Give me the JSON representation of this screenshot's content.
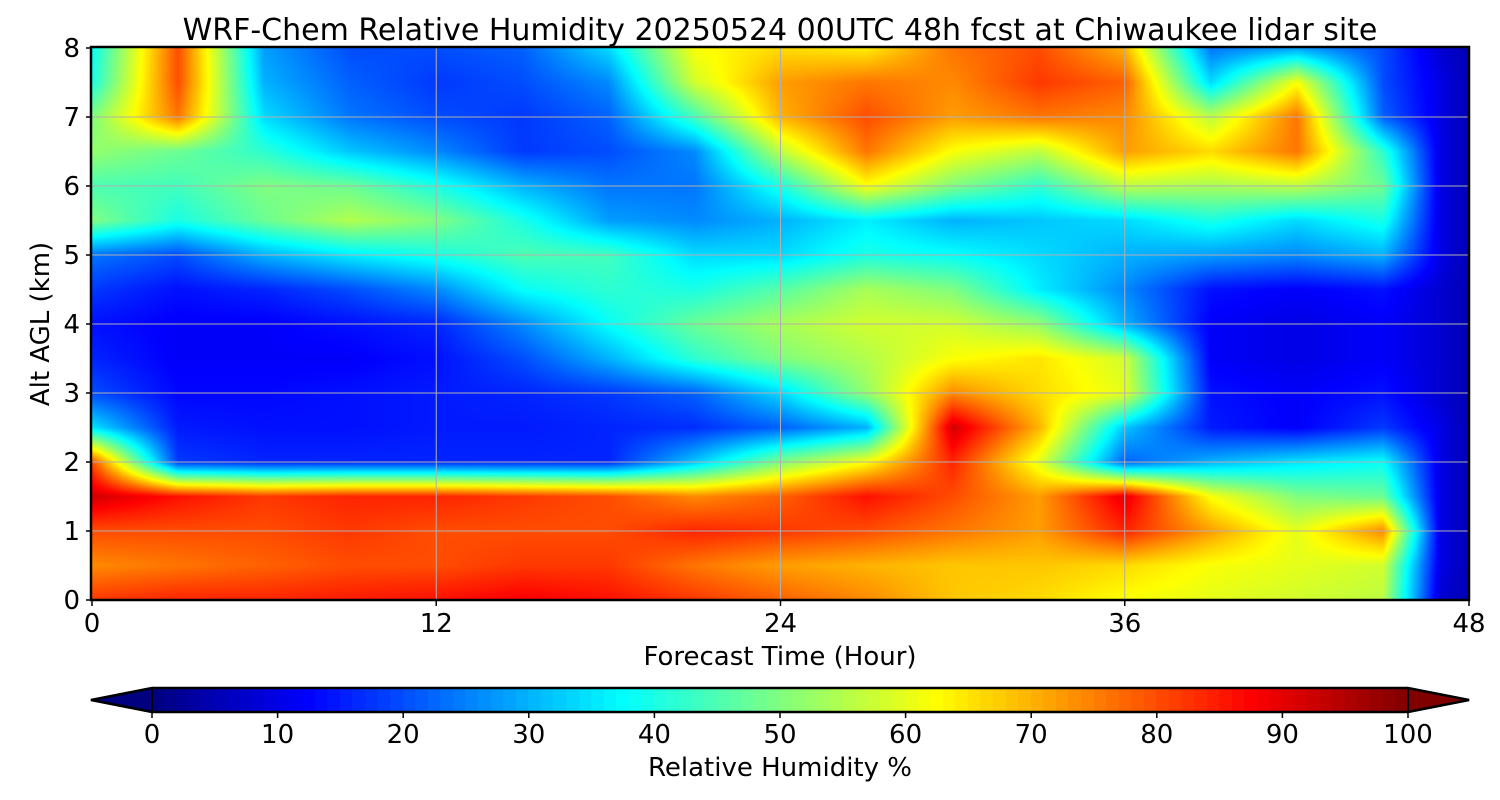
{
  "chart_data": {
    "type": "heatmap",
    "title": "WRF-Chem Relative Humidity 20250524 00UTC 48h fcst at Chiwaukee lidar site",
    "xlabel": "Forecast Time (Hour)",
    "ylabel": "Alt AGL (km)",
    "xlim": [
      0,
      48
    ],
    "ylim": [
      0,
      8
    ],
    "xticks": [
      0,
      12,
      24,
      36,
      48
    ],
    "yticks": [
      0,
      1,
      2,
      3,
      4,
      5,
      6,
      7,
      8
    ],
    "grid": true,
    "colormap": "jet",
    "colorbar": {
      "label": "Relative Humidity %",
      "orientation": "horizontal",
      "position": "bottom",
      "range": [
        0,
        100
      ],
      "ticks": [
        0,
        10,
        20,
        30,
        40,
        50,
        60,
        70,
        80,
        90,
        100
      ],
      "extend": "both"
    },
    "x": [
      0,
      3,
      6,
      9,
      12,
      15,
      18,
      21,
      24,
      27,
      30,
      33,
      36,
      39,
      42,
      45,
      47,
      48
    ],
    "y": [
      0,
      0.5,
      1,
      1.5,
      2,
      2.5,
      3,
      3.5,
      4,
      4.5,
      5,
      5.5,
      6,
      6.5,
      7,
      7.5,
      8
    ],
    "z": [
      [
        82,
        84,
        84,
        85,
        86,
        88,
        86,
        82,
        78,
        74,
        68,
        66,
        62,
        60,
        58,
        56,
        8,
        5
      ],
      [
        74,
        76,
        78,
        80,
        80,
        82,
        82,
        76,
        72,
        70,
        68,
        68,
        66,
        62,
        60,
        58,
        10,
        5
      ],
      [
        80,
        80,
        80,
        82,
        80,
        80,
        80,
        84,
        82,
        80,
        76,
        72,
        84,
        72,
        60,
        74,
        10,
        5
      ],
      [
        92,
        86,
        82,
        84,
        84,
        82,
        80,
        74,
        78,
        86,
        80,
        72,
        90,
        62,
        50,
        48,
        10,
        5
      ],
      [
        80,
        18,
        16,
        16,
        16,
        16,
        16,
        32,
        50,
        62,
        84,
        60,
        22,
        30,
        35,
        38,
        10,
        5
      ],
      [
        35,
        15,
        14,
        14,
        15,
        15,
        16,
        17,
        22,
        30,
        92,
        70,
        32,
        15,
        12,
        18,
        10,
        5
      ],
      [
        20,
        13,
        13,
        14,
        15,
        16,
        18,
        22,
        34,
        52,
        74,
        66,
        60,
        14,
        12,
        14,
        8,
        5
      ],
      [
        16,
        12,
        12,
        12,
        14,
        20,
        30,
        42,
        50,
        55,
        62,
        65,
        58,
        12,
        10,
        12,
        8,
        5
      ],
      [
        14,
        12,
        12,
        14,
        16,
        26,
        38,
        48,
        54,
        58,
        58,
        52,
        30,
        12,
        10,
        12,
        8,
        5
      ],
      [
        18,
        14,
        16,
        20,
        26,
        38,
        42,
        40,
        46,
        54,
        50,
        36,
        26,
        14,
        12,
        14,
        8,
        5
      ],
      [
        24,
        20,
        30,
        36,
        40,
        45,
        44,
        34,
        34,
        40,
        38,
        34,
        30,
        28,
        26,
        30,
        10,
        5
      ],
      [
        50,
        40,
        48,
        55,
        50,
        40,
        28,
        26,
        30,
        36,
        30,
        32,
        34,
        40,
        34,
        40,
        10,
        5
      ],
      [
        45,
        44,
        50,
        48,
        40,
        30,
        24,
        24,
        40,
        62,
        50,
        42,
        56,
        54,
        56,
        48,
        10,
        5
      ],
      [
        52,
        48,
        42,
        32,
        26,
        18,
        20,
        26,
        56,
        76,
        62,
        56,
        72,
        66,
        76,
        42,
        10,
        5
      ],
      [
        50,
        76,
        34,
        24,
        20,
        18,
        22,
        44,
        70,
        80,
        72,
        76,
        74,
        56,
        76,
        22,
        10,
        5
      ],
      [
        40,
        80,
        30,
        22,
        18,
        20,
        26,
        58,
        72,
        76,
        74,
        82,
        78,
        34,
        62,
        20,
        10,
        5
      ],
      [
        38,
        80,
        28,
        20,
        20,
        22,
        34,
        62,
        66,
        64,
        76,
        80,
        70,
        24,
        28,
        20,
        8,
        5
      ]
    ]
  }
}
